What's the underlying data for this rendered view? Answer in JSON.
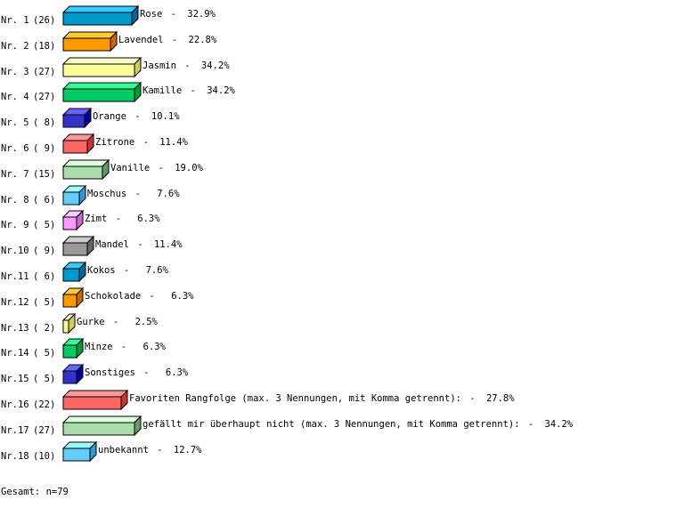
{
  "chart_data": {
    "type": "bar",
    "orientation": "horizontal",
    "style": "3d",
    "grid": false,
    "xlim": [
      0,
      100
    ],
    "unit": "%",
    "rows": [
      {
        "rank": "Nr. 1",
        "count": "(26)",
        "category": "Rose",
        "value": 32.9,
        "value_label": "32.9%",
        "colors": {
          "front": "#0099cc",
          "top": "#33ccff",
          "side": "#006699"
        }
      },
      {
        "rank": "Nr. 2",
        "count": "(18)",
        "category": "Lavendel",
        "value": 22.8,
        "value_label": "22.8%",
        "colors": {
          "front": "#ff9900",
          "top": "#ffcc33",
          "side": "#cc6600"
        }
      },
      {
        "rank": "Nr. 3",
        "count": "(27)",
        "category": "Jasmin",
        "value": 34.2,
        "value_label": "34.2%",
        "colors": {
          "front": "#ffff99",
          "top": "#ffffcc",
          "side": "#cccc66"
        }
      },
      {
        "rank": "Nr. 4",
        "count": "(27)",
        "category": "Kamille",
        "value": 34.2,
        "value_label": "34.2%",
        "colors": {
          "front": "#00cc66",
          "top": "#33ff99",
          "side": "#009933"
        }
      },
      {
        "rank": "Nr. 5",
        "count": "( 8)",
        "category": "Orange",
        "value": 10.1,
        "value_label": "10.1%",
        "colors": {
          "front": "#3333cc",
          "top": "#6666ff",
          "side": "#000099"
        }
      },
      {
        "rank": "Nr. 6",
        "count": "( 9)",
        "category": "Zitrone",
        "value": 11.4,
        "value_label": "11.4%",
        "colors": {
          "front": "#ff6666",
          "top": "#ff9999",
          "side": "#cc3333"
        }
      },
      {
        "rank": "Nr. 7",
        "count": "(15)",
        "category": "Vanille",
        "value": 19.0,
        "value_label": "19.0%",
        "colors": {
          "front": "#aaddaa",
          "top": "#ddffdd",
          "side": "#669966"
        }
      },
      {
        "rank": "Nr. 8",
        "count": "( 6)",
        "category": "Moschus",
        "value": 7.6,
        "value_label": "7.6%",
        "colors": {
          "front": "#66ccff",
          "top": "#99ffff",
          "side": "#3399cc"
        }
      },
      {
        "rank": "Nr. 9",
        "count": "( 5)",
        "category": "Zimt",
        "value": 6.3,
        "value_label": "6.3%",
        "colors": {
          "front": "#ff99ff",
          "top": "#ffccff",
          "side": "#cc66cc"
        }
      },
      {
        "rank": "Nr.10",
        "count": "( 9)",
        "category": "Mandel",
        "value": 11.4,
        "value_label": "11.4%",
        "colors": {
          "front": "#999999",
          "top": "#cccccc",
          "side": "#666666"
        }
      },
      {
        "rank": "Nr.11",
        "count": "( 6)",
        "category": "Kokos",
        "value": 7.6,
        "value_label": "7.6%",
        "colors": {
          "front": "#0099cc",
          "top": "#33ccff",
          "side": "#006699"
        }
      },
      {
        "rank": "Nr.12",
        "count": "( 5)",
        "category": "Schokolade",
        "value": 6.3,
        "value_label": "6.3%",
        "colors": {
          "front": "#ff9900",
          "top": "#ffcc33",
          "side": "#cc6600"
        }
      },
      {
        "rank": "Nr.13",
        "count": "( 2)",
        "category": "Gurke",
        "value": 2.5,
        "value_label": "2.5%",
        "colors": {
          "front": "#ffff99",
          "top": "#ffffcc",
          "side": "#cccc66"
        }
      },
      {
        "rank": "Nr.14",
        "count": "( 5)",
        "category": "Minze",
        "value": 6.3,
        "value_label": "6.3%",
        "colors": {
          "front": "#00cc66",
          "top": "#33ff99",
          "side": "#009933"
        }
      },
      {
        "rank": "Nr.15",
        "count": "( 5)",
        "category": "Sonstiges",
        "value": 6.3,
        "value_label": "6.3%",
        "colors": {
          "front": "#3333cc",
          "top": "#6666ff",
          "side": "#000099"
        }
      },
      {
        "rank": "Nr.16",
        "count": "(22)",
        "category": "Favoriten Rangfolge (max. 3 Nennungen, mit Komma getrennt):",
        "value": 27.8,
        "value_label": "27.8%",
        "colors": {
          "front": "#ff6666",
          "top": "#ff9999",
          "side": "#cc3333"
        }
      },
      {
        "rank": "Nr.17",
        "count": "(27)",
        "category": "gefällt mir überhaupt nicht (max. 3 Nennungen, mit Komma getrennt):",
        "value": 34.2,
        "value_label": "34.2%",
        "colors": {
          "front": "#aaddaa",
          "top": "#ddffdd",
          "side": "#669966"
        }
      },
      {
        "rank": "Nr.18",
        "count": "(10)",
        "category": "unbekannt",
        "value": 12.7,
        "value_label": "12.7%",
        "colors": {
          "front": "#66ccff",
          "top": "#99ffff",
          "side": "#3399cc"
        }
      }
    ]
  },
  "footer": {
    "total": "Gesamt: n=79"
  }
}
